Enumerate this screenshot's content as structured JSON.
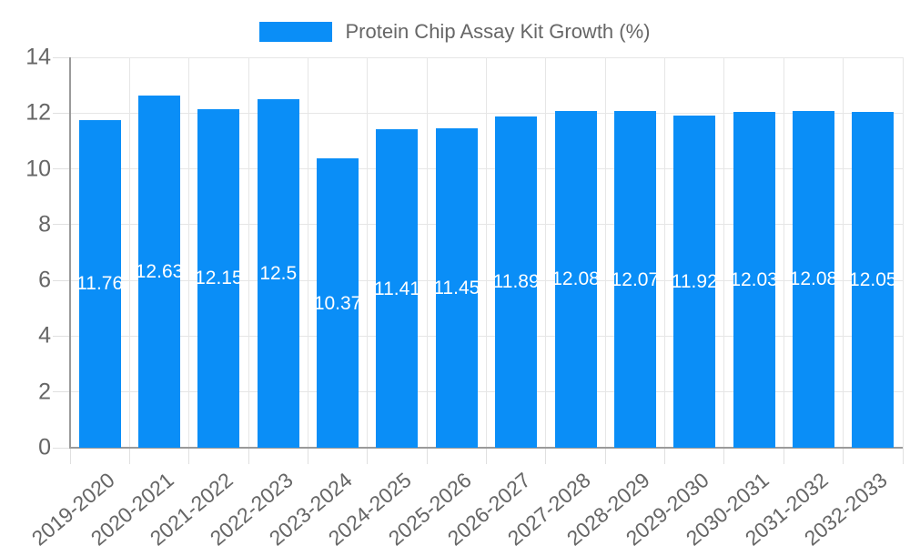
{
  "legend": {
    "label": "Protein Chip Assay Kit Growth (%)"
  },
  "colors": {
    "bar": "#0a8ef7",
    "grid": "#e6e6e6",
    "axis": "#9a9a9a",
    "tick_text": "#666666",
    "value_label": "#ffffff",
    "background": "#ffffff"
  },
  "chart_data": {
    "type": "bar",
    "title": "",
    "legend_label": "Protein Chip Assay Kit Growth (%)",
    "legend_position": "top-center",
    "categories": [
      "2019-2020",
      "2020-2021",
      "2021-2022",
      "2022-2023",
      "2023-2024",
      "2024-2025",
      "2025-2026",
      "2026-2027",
      "2027-2028",
      "2028-2029",
      "2029-2030",
      "2030-2031",
      "2031-2032",
      "2032-2033"
    ],
    "values": [
      11.76,
      12.63,
      12.15,
      12.5,
      10.37,
      11.41,
      11.45,
      11.89,
      12.08,
      12.07,
      11.92,
      12.03,
      12.08,
      12.05
    ],
    "xlabel": "",
    "ylabel": "",
    "ylim": [
      0,
      14
    ],
    "yticks": [
      0,
      2,
      4,
      6,
      8,
      10,
      12,
      14
    ],
    "grid": true,
    "bar_value_labels_shown": true,
    "x_tick_rotation_deg": -40
  }
}
